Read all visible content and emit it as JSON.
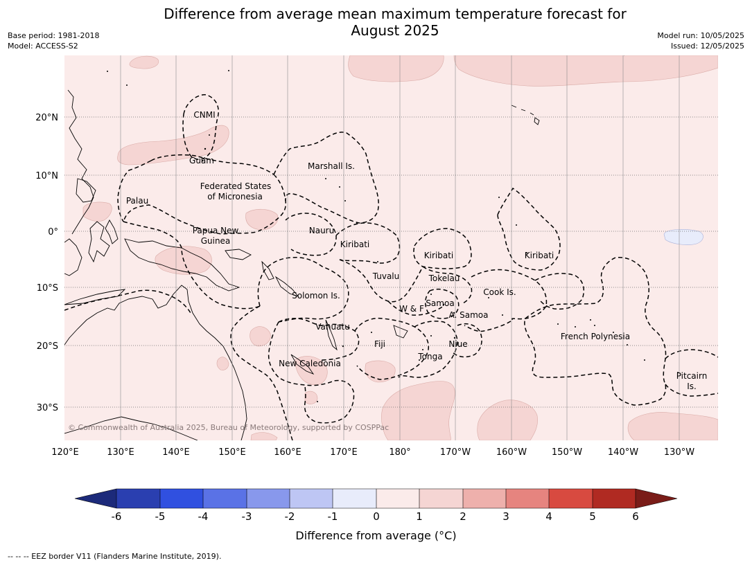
{
  "title_line1": "Difference from average mean maximum temperature forecast for",
  "title_line2": "August 2025",
  "meta_left": {
    "base_period": "Base period: 1981-2018",
    "model": "Model: ACCESS-S2"
  },
  "meta_right": {
    "model_run": "Model run: 10/05/2025",
    "issued": "Issued: 12/05/2025"
  },
  "map": {
    "copyright": "© Commonwealth of Australia 2025, Bureau of Meteorology, supported by COSPPac",
    "lat_ticks": [
      "20°N",
      "10°N",
      "0°",
      "10°S",
      "20°S",
      "30°S"
    ],
    "lon_ticks": [
      "120°E",
      "130°E",
      "140°E",
      "150°E",
      "160°E",
      "170°E",
      "180°",
      "170°W",
      "160°W",
      "150°W",
      "140°W",
      "130°W"
    ],
    "place_labels": {
      "cnmi": "CNMI",
      "guam": "Guam",
      "marshall": "Marshall Is.",
      "fsm_1": "Federated States",
      "fsm_2": "of Micronesia",
      "palau": "Palau",
      "png_1": "Papua New",
      "png_2": "Guinea",
      "nauru": "Nauru",
      "kiribati_w": "Kiribati",
      "kiribati_c": "Kiribati",
      "kiribati_e": "Kiribati",
      "tuvalu": "Tuvalu",
      "tokelau": "Tokelau",
      "cook": "Cook Is.",
      "solomon": "Solomon Is.",
      "wf": "W & F",
      "samoa": "Samoa",
      "asamoa": "A. Samoa",
      "vanuatu": "Vanuatu",
      "fiji": "Fiji",
      "niue": "Niue",
      "fp": "French Polynesia",
      "tonga": "Tonga",
      "nc": "New Caledonia",
      "pitcairn_1": "Pitcairn",
      "pitcairn_2": "Is."
    }
  },
  "colorbar": {
    "label": "Difference from average (°C)",
    "ticks": [
      "-6",
      "-5",
      "-4",
      "-3",
      "-2",
      "-1",
      "0",
      "1",
      "2",
      "3",
      "4",
      "5",
      "6"
    ],
    "colors": {
      "under": "#1c2a7a",
      "c1": "#2a3fb0",
      "c2": "#3050e0",
      "c3": "#5a72e6",
      "c4": "#8898ec",
      "c5": "#bec6f4",
      "c6": "#e8ecfb",
      "c7": "#fbebea",
      "c8": "#f5d5d3",
      "c9": "#eeb0ac",
      "c10": "#e6847f",
      "c11": "#d84a40",
      "c12": "#b02a22",
      "over": "#7a1c18"
    }
  },
  "footer": "--  --  -- EEZ border V11 (Flanders Marine Institute, 2019)."
}
